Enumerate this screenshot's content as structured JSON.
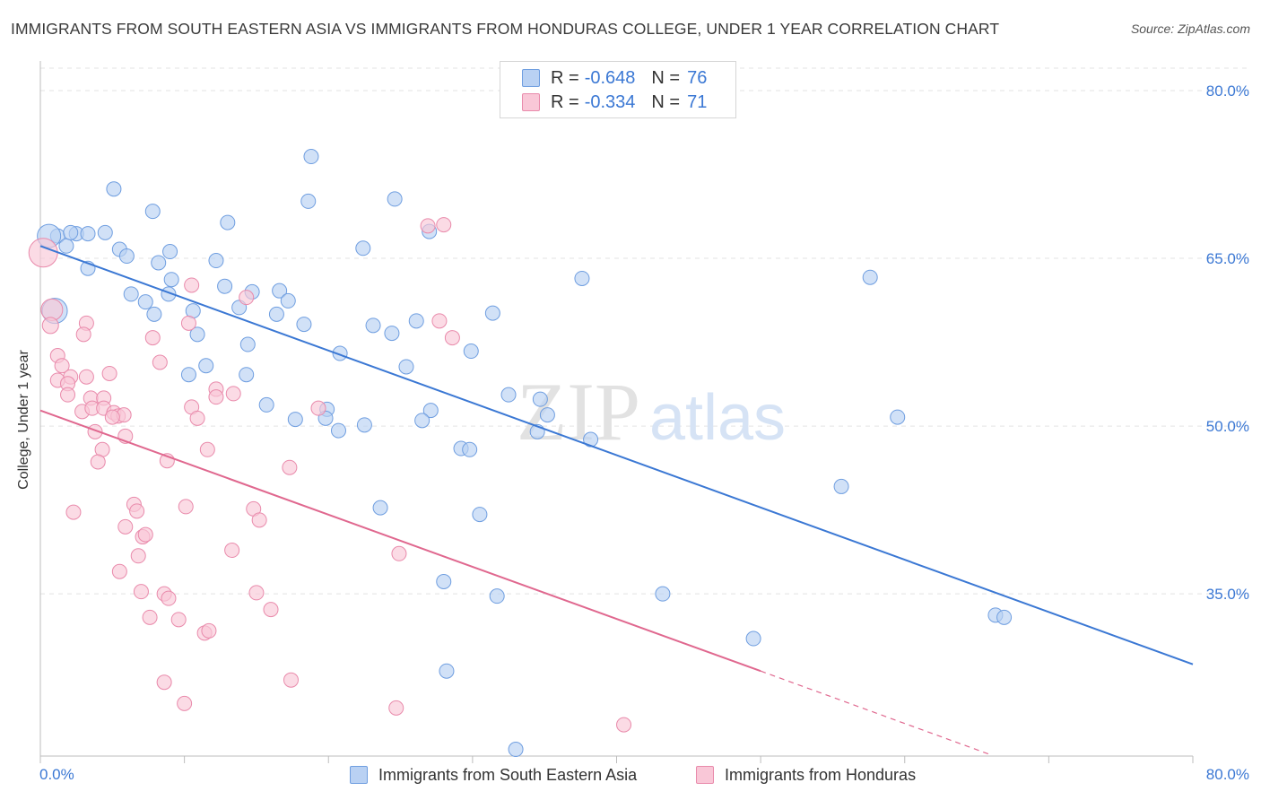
{
  "title": "IMMIGRANTS FROM SOUTH EASTERN ASIA VS IMMIGRANTS FROM HONDURAS COLLEGE, UNDER 1 YEAR CORRELATION CHART",
  "source": "Source: ZipAtlas.com",
  "watermark": {
    "zip": "ZIP",
    "atlas": "atlas"
  },
  "legend": {
    "r_label": "R = ",
    "n_label": "N = ",
    "rows": [
      {
        "r": "-0.648",
        "n": "76",
        "color": "#6f9ee0",
        "fill": "#b9d1f3"
      },
      {
        "r": "-0.334",
        "n": "71",
        "color": "#e98aab",
        "fill": "#f9c7d7"
      }
    ]
  },
  "chart_data": {
    "type": "scatter",
    "title": "IMMIGRANTS FROM SOUTH EASTERN ASIA VS IMMIGRANTS FROM HONDURAS COLLEGE, UNDER 1 YEAR CORRELATION CHART",
    "xlabel": "",
    "ylabel": "College, Under 1 year",
    "xlim": [
      0,
      80
    ],
    "ylim": [
      20.5,
      82
    ],
    "x_tick_labels": [
      "0.0%",
      "80.0%"
    ],
    "y_ticks": [
      35,
      50,
      65,
      80
    ],
    "y_tick_labels": [
      "35.0%",
      "50.0%",
      "65.0%",
      "80.0%"
    ],
    "grid": true,
    "colors": {
      "blue": "#3b78d4",
      "pink": "#e0688f",
      "grid": "#e3e3e3"
    },
    "series": [
      {
        "name": "Immigrants from South Eastern Asia",
        "color": "#6f9ee0",
        "fill": "#b9d1f3",
        "trend": {
          "x": [
            0,
            80
          ],
          "y": [
            66.1,
            28.7
          ]
        },
        "points": [
          [
            1.2,
            67.0
          ],
          [
            2.5,
            67.2
          ],
          [
            3.3,
            67.2
          ],
          [
            4.5,
            67.3
          ],
          [
            1.8,
            66.1
          ],
          [
            5.5,
            65.8
          ],
          [
            9.0,
            65.6
          ],
          [
            1.0,
            60.3
          ],
          [
            6.0,
            65.2
          ],
          [
            3.3,
            64.1
          ],
          [
            8.2,
            64.6
          ],
          [
            12.2,
            64.8
          ],
          [
            7.8,
            69.2
          ],
          [
            5.1,
            71.2
          ],
          [
            13.0,
            68.2
          ],
          [
            18.8,
            74.1
          ],
          [
            18.6,
            70.1
          ],
          [
            24.6,
            70.3
          ],
          [
            27.0,
            67.4
          ],
          [
            22.4,
            65.9
          ],
          [
            37.6,
            63.2
          ],
          [
            9.1,
            63.1
          ],
          [
            6.3,
            61.8
          ],
          [
            8.9,
            61.8
          ],
          [
            7.3,
            61.1
          ],
          [
            12.8,
            62.5
          ],
          [
            14.7,
            62.0
          ],
          [
            16.6,
            62.1
          ],
          [
            17.2,
            61.2
          ],
          [
            13.8,
            60.6
          ],
          [
            7.9,
            60.0
          ],
          [
            10.6,
            60.3
          ],
          [
            16.4,
            60.0
          ],
          [
            18.3,
            59.1
          ],
          [
            23.1,
            59.0
          ],
          [
            24.4,
            58.3
          ],
          [
            26.1,
            59.4
          ],
          [
            31.4,
            60.1
          ],
          [
            10.9,
            58.2
          ],
          [
            14.4,
            57.3
          ],
          [
            20.8,
            56.5
          ],
          [
            29.9,
            56.7
          ],
          [
            11.5,
            55.4
          ],
          [
            10.3,
            54.6
          ],
          [
            14.3,
            54.6
          ],
          [
            25.4,
            55.3
          ],
          [
            32.5,
            52.8
          ],
          [
            34.7,
            52.4
          ],
          [
            15.7,
            51.9
          ],
          [
            19.9,
            51.5
          ],
          [
            27.1,
            51.4
          ],
          [
            35.2,
            51.0
          ],
          [
            17.7,
            50.6
          ],
          [
            19.8,
            50.7
          ],
          [
            22.5,
            50.1
          ],
          [
            26.5,
            50.5
          ],
          [
            20.7,
            49.6
          ],
          [
            34.5,
            49.5
          ],
          [
            38.2,
            48.8
          ],
          [
            29.2,
            48.0
          ],
          [
            29.8,
            47.9
          ],
          [
            57.6,
            63.3
          ],
          [
            59.5,
            50.8
          ],
          [
            55.6,
            44.6
          ],
          [
            23.6,
            42.7
          ],
          [
            30.5,
            42.1
          ],
          [
            28.0,
            36.1
          ],
          [
            31.7,
            34.8
          ],
          [
            43.2,
            35.0
          ],
          [
            28.2,
            28.1
          ],
          [
            49.5,
            31.0
          ],
          [
            66.3,
            33.1
          ],
          [
            66.9,
            32.9
          ],
          [
            33.0,
            21.1
          ],
          [
            0.6,
            67.0
          ],
          [
            2.1,
            67.3
          ]
        ],
        "sizes": [
          8,
          8,
          8,
          8,
          8,
          8,
          8,
          14,
          8,
          8,
          8,
          8,
          8,
          8,
          8,
          8,
          8,
          8,
          8,
          8,
          8,
          8,
          8,
          8,
          8,
          8,
          8,
          8,
          8,
          8,
          8,
          8,
          8,
          8,
          8,
          8,
          8,
          8,
          8,
          8,
          8,
          8,
          8,
          8,
          8,
          8,
          8,
          8,
          8,
          8,
          8,
          8,
          8,
          8,
          8,
          8,
          8,
          8,
          8,
          8,
          8,
          8,
          8,
          8,
          8,
          8,
          8,
          8,
          8,
          8,
          8,
          8,
          8,
          8,
          13,
          8
        ]
      },
      {
        "name": "Immigrants from Honduras",
        "color": "#e98aab",
        "fill": "#f9c7d7",
        "trend": {
          "x": [
            0,
            50
          ],
          "y": [
            51.4,
            28.1
          ]
        },
        "trend_dashed": {
          "x": [
            50,
            66
          ],
          "y": [
            28.1,
            20.6
          ]
        },
        "points": [
          [
            0.2,
            65.5
          ],
          [
            0.8,
            60.4
          ],
          [
            0.7,
            59.0
          ],
          [
            3.2,
            59.2
          ],
          [
            3.0,
            58.2
          ],
          [
            7.8,
            57.9
          ],
          [
            1.2,
            56.3
          ],
          [
            1.5,
            55.4
          ],
          [
            2.1,
            54.4
          ],
          [
            4.8,
            54.7
          ],
          [
            8.3,
            55.7
          ],
          [
            3.2,
            54.4
          ],
          [
            1.2,
            54.1
          ],
          [
            1.9,
            53.8
          ],
          [
            1.9,
            52.8
          ],
          [
            3.5,
            52.5
          ],
          [
            4.4,
            52.5
          ],
          [
            2.9,
            51.3
          ],
          [
            3.6,
            51.6
          ],
          [
            4.4,
            51.6
          ],
          [
            5.1,
            51.2
          ],
          [
            5.4,
            50.9
          ],
          [
            5.8,
            51.0
          ],
          [
            5.0,
            50.8
          ],
          [
            10.5,
            51.7
          ],
          [
            10.9,
            50.7
          ],
          [
            12.2,
            53.3
          ],
          [
            12.2,
            52.6
          ],
          [
            13.4,
            52.9
          ],
          [
            8.8,
            46.9
          ],
          [
            3.8,
            49.5
          ],
          [
            5.9,
            49.1
          ],
          [
            4.3,
            47.9
          ],
          [
            4.0,
            46.8
          ],
          [
            11.6,
            47.9
          ],
          [
            17.3,
            46.3
          ],
          [
            19.3,
            51.6
          ],
          [
            10.5,
            62.6
          ],
          [
            14.3,
            61.5
          ],
          [
            10.3,
            59.2
          ],
          [
            27.7,
            59.4
          ],
          [
            28.0,
            68.0
          ],
          [
            26.9,
            67.9
          ],
          [
            28.6,
            57.9
          ],
          [
            6.5,
            43.0
          ],
          [
            6.7,
            42.4
          ],
          [
            2.3,
            42.3
          ],
          [
            10.1,
            42.8
          ],
          [
            14.8,
            42.6
          ],
          [
            15.2,
            41.6
          ],
          [
            5.9,
            41.0
          ],
          [
            7.1,
            40.1
          ],
          [
            7.3,
            40.3
          ],
          [
            6.8,
            38.4
          ],
          [
            13.3,
            38.9
          ],
          [
            24.9,
            38.6
          ],
          [
            5.5,
            37.0
          ],
          [
            7.0,
            35.2
          ],
          [
            8.6,
            35.0
          ],
          [
            8.9,
            34.6
          ],
          [
            15.0,
            35.1
          ],
          [
            16.0,
            33.6
          ],
          [
            7.6,
            32.9
          ],
          [
            9.6,
            32.7
          ],
          [
            11.4,
            31.5
          ],
          [
            11.7,
            31.7
          ],
          [
            8.6,
            27.1
          ],
          [
            17.4,
            27.3
          ],
          [
            10.0,
            25.2
          ],
          [
            24.7,
            24.8
          ],
          [
            40.5,
            23.3
          ]
        ],
        "sizes": [
          16,
          12,
          9,
          8,
          8,
          8,
          8,
          8,
          8,
          8,
          8,
          8,
          8,
          8,
          8,
          8,
          8,
          8,
          8,
          8,
          8,
          8,
          8,
          8,
          8,
          8,
          8,
          8,
          8,
          8,
          8,
          8,
          8,
          8,
          8,
          8,
          8,
          8,
          8,
          8,
          8,
          8,
          8,
          8,
          8,
          8,
          8,
          8,
          8,
          8,
          8,
          8,
          8,
          8,
          8,
          8,
          8,
          8,
          8,
          8,
          8,
          8,
          8,
          8,
          8,
          8,
          8,
          8,
          8,
          8,
          8
        ]
      }
    ]
  }
}
